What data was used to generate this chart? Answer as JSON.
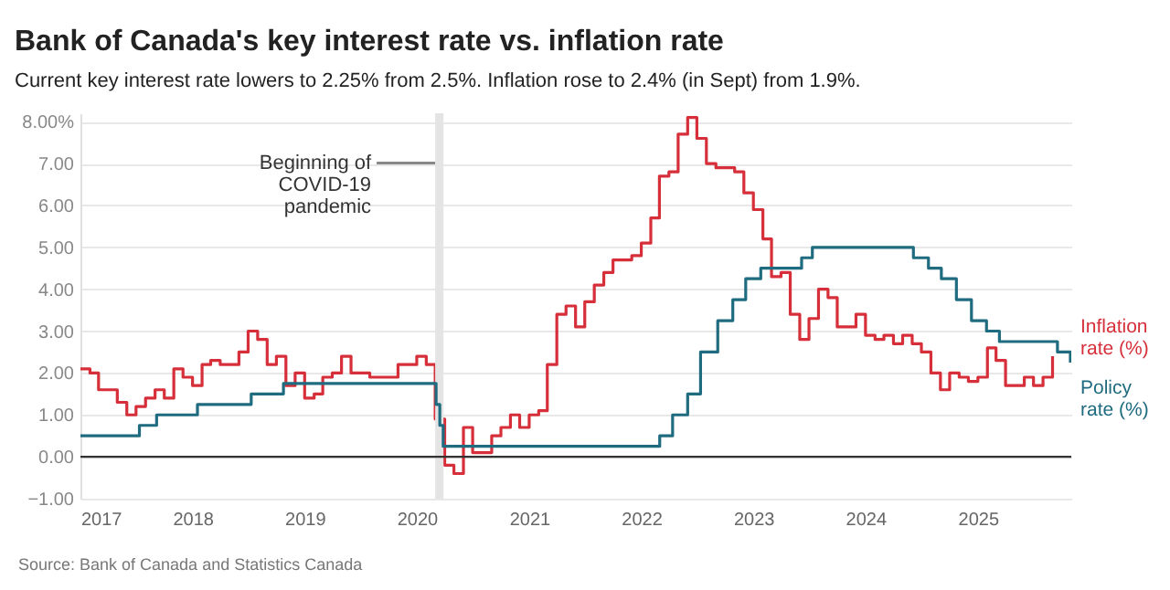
{
  "chart_data": {
    "type": "step",
    "title": "Bank of Canada's key interest rate vs. inflation rate",
    "subtitle": "Current key interest rate lowers to 2.25% from 2.5%. Inflation rose to 2.4% (in Sept) from 1.9%.",
    "annotations": [
      "Source: Bank of Canada and Statistics Canada"
    ],
    "x": [
      "2017-01",
      "2017-02",
      "2017-03",
      "2017-04",
      "2017-05",
      "2017-06",
      "2017-07",
      "2017-08",
      "2017-09",
      "2017-10",
      "2017-11",
      "2017-12",
      "2018-01",
      "2018-02",
      "2018-03",
      "2018-04",
      "2018-05",
      "2018-06",
      "2018-07",
      "2018-08",
      "2018-09",
      "2018-10",
      "2018-11",
      "2018-12",
      "2019-01",
      "2019-02",
      "2019-03",
      "2019-04",
      "2019-05",
      "2019-06",
      "2019-07",
      "2019-08",
      "2019-09",
      "2019-10",
      "2019-11",
      "2019-12",
      "2020-01",
      "2020-02",
      "2020-03",
      "2020-04",
      "2020-05",
      "2020-06",
      "2020-07",
      "2020-08",
      "2020-09",
      "2020-10",
      "2020-11",
      "2020-12",
      "2021-01",
      "2021-02",
      "2021-03",
      "2021-04",
      "2021-05",
      "2021-06",
      "2021-07",
      "2021-08",
      "2021-09",
      "2021-10",
      "2021-11",
      "2021-12",
      "2022-01",
      "2022-02",
      "2022-03",
      "2022-04",
      "2022-05",
      "2022-06",
      "2022-07",
      "2022-08",
      "2022-09",
      "2022-10",
      "2022-11",
      "2022-12",
      "2023-01",
      "2023-02",
      "2023-03",
      "2023-04",
      "2023-05",
      "2023-06",
      "2023-07",
      "2023-08",
      "2023-09",
      "2023-10",
      "2023-11",
      "2023-12",
      "2024-01",
      "2024-02",
      "2024-03",
      "2024-04",
      "2024-05",
      "2024-06",
      "2024-07",
      "2024-08",
      "2024-09",
      "2024-10",
      "2024-11",
      "2024-12",
      "2025-01",
      "2025-02",
      "2025-03",
      "2025-04",
      "2025-05",
      "2025-06",
      "2025-07",
      "2025-08",
      "2025-09"
    ],
    "series": [
      {
        "name": "Inflation rate (%)",
        "color": "#d62f3a",
        "values": [
          2.1,
          2.0,
          1.6,
          1.6,
          1.3,
          1.0,
          1.2,
          1.4,
          1.6,
          1.4,
          2.1,
          1.9,
          1.7,
          2.2,
          2.3,
          2.2,
          2.2,
          2.5,
          3.0,
          2.8,
          2.2,
          2.4,
          1.7,
          2.0,
          1.4,
          1.5,
          1.9,
          2.0,
          2.4,
          2.0,
          2.0,
          1.9,
          1.9,
          1.9,
          2.2,
          2.2,
          2.4,
          2.2,
          0.9,
          -0.2,
          -0.4,
          0.7,
          0.1,
          0.1,
          0.5,
          0.7,
          1.0,
          0.7,
          1.0,
          1.1,
          2.2,
          3.4,
          3.6,
          3.1,
          3.7,
          4.1,
          4.4,
          4.7,
          4.7,
          4.8,
          5.1,
          5.7,
          6.7,
          6.8,
          7.7,
          8.1,
          7.6,
          7.0,
          6.9,
          6.9,
          6.8,
          6.3,
          5.9,
          5.2,
          4.3,
          4.4,
          3.4,
          2.8,
          3.3,
          4.0,
          3.8,
          3.1,
          3.1,
          3.4,
          2.9,
          2.8,
          2.9,
          2.7,
          2.9,
          2.7,
          2.5,
          2.0,
          1.6,
          2.0,
          1.9,
          1.8,
          1.9,
          2.6,
          2.3,
          1.7,
          1.7,
          1.9,
          1.7,
          1.9,
          2.4
        ]
      },
      {
        "name": "Policy rate (%)",
        "color": "#1f6b80",
        "x": [
          "2017-01",
          "2017-07-12",
          "2017-09-06",
          "2018-01-17",
          "2018-07-11",
          "2018-10-24",
          "2020-03-04",
          "2020-03-16",
          "2020-03-27",
          "2022-03-02",
          "2022-04-13",
          "2022-06-01",
          "2022-07-13",
          "2022-09-07",
          "2022-10-26",
          "2022-12-07",
          "2023-01-25",
          "2023-06-07",
          "2023-07-12",
          "2024-06-05",
          "2024-07-24",
          "2024-09-04",
          "2024-10-23",
          "2024-12-11",
          "2025-01-29",
          "2025-03-12",
          "2025-09-17",
          "2025-10-29"
        ],
        "values": [
          0.5,
          0.75,
          1.0,
          1.25,
          1.5,
          1.75,
          1.25,
          0.75,
          0.25,
          0.5,
          1.0,
          1.5,
          2.5,
          3.25,
          3.75,
          4.25,
          4.5,
          4.75,
          5.0,
          4.75,
          4.5,
          4.25,
          3.75,
          3.25,
          3.0,
          2.75,
          2.5,
          2.25
        ]
      }
    ],
    "xlim": [
      "2017-01",
      "2025-11"
    ],
    "xticks": [
      "2017",
      "2018",
      "2019",
      "2020",
      "2021",
      "2022",
      "2023",
      "2024",
      "2025"
    ],
    "ylim": [
      -1,
      8.2
    ],
    "yticks": [
      {
        "value": -1,
        "label": "−1.00"
      },
      {
        "value": 0,
        "label": "0.00"
      },
      {
        "value": 1,
        "label": "1.00"
      },
      {
        "value": 2,
        "label": "2.00"
      },
      {
        "value": 3,
        "label": "3.00"
      },
      {
        "value": 4,
        "label": "4.00"
      },
      {
        "value": 5,
        "label": "5.00"
      },
      {
        "value": 6,
        "label": "6.00"
      },
      {
        "value": 7,
        "label": "7.00"
      },
      {
        "value": 8,
        "label": "8.00%"
      }
    ],
    "grid": "y",
    "legend": false,
    "line_style": "solid",
    "ref_lines": [
      {
        "axis": "y",
        "value": 0,
        "label": null,
        "color": "#333333"
      }
    ],
    "bands": [
      {
        "axis": "x",
        "from": "2020-03-01",
        "to": "2020-03-28",
        "label": "Beginning of COVID-19 pandemic",
        "color": "#e4e4e4"
      }
    ]
  }
}
